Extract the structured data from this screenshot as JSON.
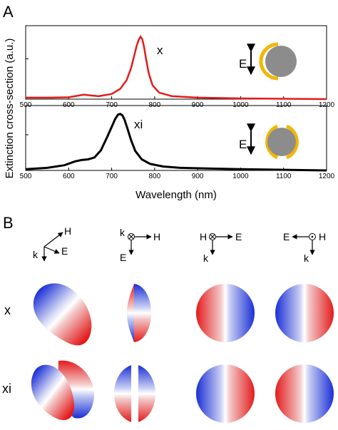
{
  "panel_a_label": "A",
  "panel_b_label": "B",
  "colors": {
    "red": "#e31b1b",
    "black": "#000000",
    "gold": "#f2b705",
    "gray": "#8c8c8c",
    "blue": "#1a2fd6"
  },
  "chart_data": [
    {
      "type": "line",
      "x_ticks": [
        "500",
        "600",
        "700",
        "800",
        "900",
        "1000",
        "1100",
        "1200"
      ],
      "xlim": [
        500,
        1200
      ],
      "ylim": [
        0,
        1.0
      ],
      "ylabel": "Extinction cross-section (a.u.)",
      "xlabel": "",
      "annotation": "x",
      "field_label": "E",
      "series": [
        {
          "color": "#e31b1b",
          "x": [
            500,
            560,
            600,
            620,
            635,
            650,
            670,
            700,
            720,
            735,
            745,
            752,
            758,
            763,
            767,
            771,
            775,
            780,
            786,
            795,
            810,
            840,
            900,
            1000,
            1100,
            1200
          ],
          "y": [
            0.02,
            0.02,
            0.025,
            0.045,
            0.06,
            0.05,
            0.04,
            0.07,
            0.14,
            0.26,
            0.42,
            0.58,
            0.72,
            0.81,
            0.85,
            0.82,
            0.72,
            0.55,
            0.36,
            0.19,
            0.09,
            0.04,
            0.02,
            0.01,
            0.005,
            0.0
          ]
        }
      ]
    },
    {
      "type": "line",
      "x_ticks": [
        "500",
        "600",
        "700",
        "800",
        "900",
        "1000",
        "1100",
        "1200"
      ],
      "xlim": [
        500,
        1200
      ],
      "ylim": [
        0,
        1.0
      ],
      "xlabel": "Wavelength (nm)",
      "ylabel": "",
      "annotation": "xi",
      "field_label": "E",
      "series": [
        {
          "color": "#000000",
          "x": [
            500,
            550,
            590,
            615,
            630,
            645,
            660,
            675,
            690,
            700,
            708,
            715,
            720,
            725,
            730,
            737,
            745,
            755,
            770,
            790,
            820,
            860,
            920,
            1000,
            1100,
            1200
          ],
          "y": [
            0.02,
            0.04,
            0.08,
            0.14,
            0.16,
            0.17,
            0.2,
            0.31,
            0.52,
            0.67,
            0.79,
            0.86,
            0.87,
            0.85,
            0.78,
            0.64,
            0.47,
            0.3,
            0.17,
            0.1,
            0.06,
            0.04,
            0.03,
            0.02,
            0.01,
            0.0
          ]
        }
      ]
    }
  ],
  "panel_b": {
    "axes_sets": [
      {
        "h": "H",
        "e": "E",
        "k": "k"
      },
      {
        "h": "H",
        "e": "E",
        "k": "k"
      },
      {
        "h": "H",
        "e": "E",
        "k": "k"
      },
      {
        "h": "H",
        "e": "E",
        "k": "k"
      }
    ],
    "rows": [
      {
        "label": "x"
      },
      {
        "label": "xi"
      }
    ]
  }
}
